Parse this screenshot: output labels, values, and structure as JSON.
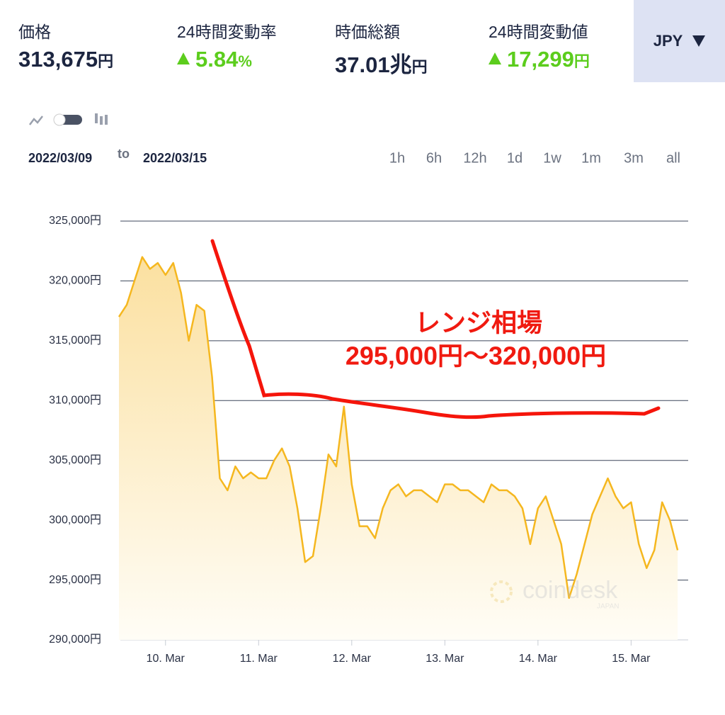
{
  "header": {
    "stats": [
      {
        "label": "価格",
        "value": "313,675",
        "unit": "円"
      },
      {
        "label": "24時間変動率",
        "value": "5.84",
        "unit": "%"
      },
      {
        "label": "時価総額",
        "value": "37.01兆",
        "unit": "円"
      },
      {
        "label": "24時間変動値",
        "value": "17,299",
        "unit": "円"
      }
    ],
    "currency": "JPY"
  },
  "controls": {
    "from": "2022/03/09",
    "to_word": "to",
    "to": "2022/03/15",
    "ranges": [
      "1h",
      "6h",
      "12h",
      "1d",
      "1w",
      "1m",
      "3m",
      "all"
    ]
  },
  "chart_data": {
    "type": "area",
    "categories": [
      null,
      null,
      null,
      null,
      null,
      null,
      "10. Mar",
      null,
      null,
      null,
      null,
      null,
      null,
      null,
      null,
      null,
      null,
      null,
      "11. Mar",
      null,
      null,
      null,
      null,
      null,
      null,
      null,
      null,
      null,
      null,
      null,
      "12. Mar",
      null,
      null,
      null,
      null,
      null,
      null,
      null,
      null,
      null,
      null,
      null,
      "13. Mar",
      null,
      null,
      null,
      null,
      null,
      null,
      null,
      null,
      null,
      null,
      null,
      "14. Mar",
      null,
      null,
      null,
      null,
      null,
      null,
      null,
      null,
      null,
      null,
      null,
      "15. Mar",
      null,
      null,
      null,
      null,
      null,
      null
    ],
    "values": [
      317000,
      318000,
      320000,
      322000,
      321000,
      321500,
      320500,
      321500,
      319000,
      315000,
      318000,
      317500,
      312000,
      303500,
      302500,
      304500,
      303500,
      304000,
      303500,
      303500,
      305000,
      306000,
      304500,
      301000,
      296500,
      297000,
      301000,
      305500,
      304500,
      309500,
      303000,
      299500,
      299500,
      298500,
      301000,
      302500,
      303000,
      302000,
      302500,
      302500,
      302000,
      301500,
      303000,
      303000,
      302500,
      302500,
      302000,
      301500,
      303000,
      302500,
      302500,
      302000,
      301000,
      298000,
      301000,
      302000,
      300000,
      298000,
      293500,
      295500,
      298000,
      300500,
      302000,
      303500,
      302000,
      301000,
      301500,
      298000,
      296000,
      297500,
      301500,
      300000,
      297500
    ],
    "color": "#f5b71f",
    "ylim": [
      290000,
      325000
    ],
    "yticks": [
      {
        "value": 290000,
        "label": "290,000円"
      },
      {
        "value": 295000,
        "label": "295,000円"
      },
      {
        "value": 300000,
        "label": "300,000円"
      },
      {
        "value": 305000,
        "label": "305,000円"
      },
      {
        "value": 310000,
        "label": "310,000円"
      },
      {
        "value": 315000,
        "label": "315,000円"
      },
      {
        "value": 320000,
        "label": "320,000円"
      },
      {
        "value": 325000,
        "label": "325,000円"
      }
    ],
    "grid": true,
    "annotations": [
      "レンジ相場",
      "295,000円〜320,000円"
    ],
    "watermark": {
      "brand": "coindesk",
      "sub": "JAPAN"
    }
  }
}
